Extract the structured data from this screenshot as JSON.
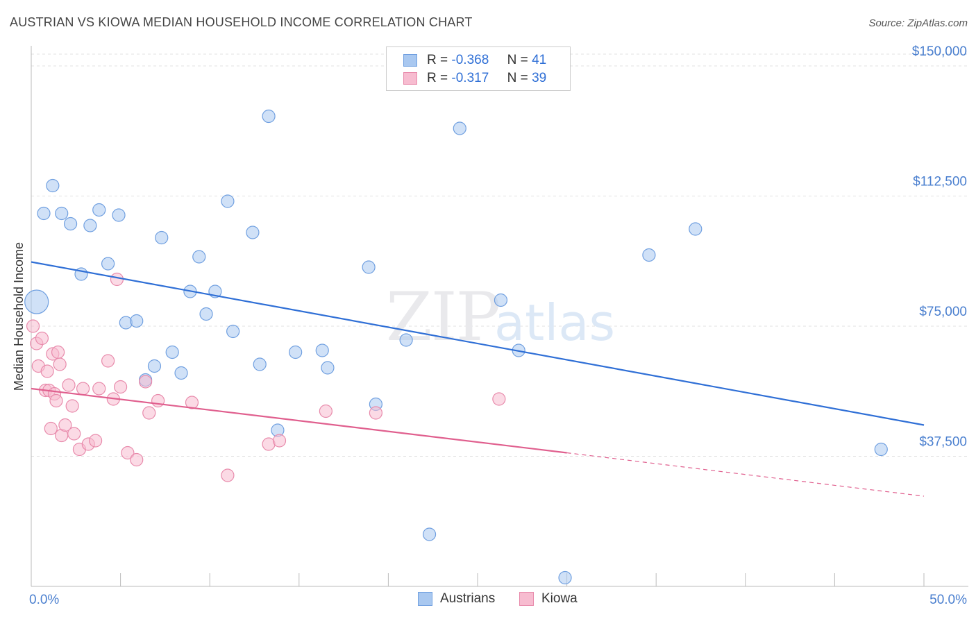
{
  "title": "AUSTRIAN VS KIOWA MEDIAN HOUSEHOLD INCOME CORRELATION CHART",
  "source": "Source: ZipAtlas.com",
  "watermark": {
    "zip": "ZIP",
    "atlas": "atlas"
  },
  "legend": {
    "rows": [
      {
        "r_label": "R =",
        "r_value": "-0.368",
        "n_label": "N =",
        "n_value": "41",
        "color": "#a9c8f0",
        "border": "#6f9fe0"
      },
      {
        "r_label": "R =",
        "r_value": "-0.317",
        "n_label": "N =",
        "n_value": "39",
        "color": "#f7bcd0",
        "border": "#e88aab"
      }
    ]
  },
  "bottom_legend": [
    {
      "label": "Austrians",
      "color": "#a9c8f0",
      "border": "#6f9fe0"
    },
    {
      "label": "Kiowa",
      "color": "#f7bcd0",
      "border": "#e88aab"
    }
  ],
  "chart_data": {
    "type": "scatter",
    "title": "AUSTRIAN VS KIOWA MEDIAN HOUSEHOLD INCOME CORRELATION CHART",
    "xlabel": "",
    "ylabel": "Median Household Income",
    "xlim": [
      0,
      50
    ],
    "ylim": [
      0,
      155000
    ],
    "x_tick_labels": [
      "0.0%",
      "50.0%"
    ],
    "y_ticks": [
      37500,
      75000,
      112500,
      150000
    ],
    "y_tick_labels": [
      "$37,500",
      "$75,000",
      "$112,500",
      "$150,000"
    ],
    "grid": "horizontal dashed",
    "legend_position": "top-center",
    "series": [
      {
        "name": "Austrians",
        "color": "#a9c8f0",
        "stroke": "#6f9fe0",
        "line_color": "#2f6fd6",
        "trend": {
          "x": [
            0,
            50
          ],
          "y": [
            93500,
            46500
          ]
        },
        "points": [
          {
            "x": 0.3,
            "y": 82000,
            "big": true
          },
          {
            "x": 0.7,
            "y": 107500
          },
          {
            "x": 1.2,
            "y": 115500
          },
          {
            "x": 1.7,
            "y": 107500
          },
          {
            "x": 2.2,
            "y": 104500
          },
          {
            "x": 2.8,
            "y": 90000
          },
          {
            "x": 3.3,
            "y": 104000
          },
          {
            "x": 3.8,
            "y": 108500
          },
          {
            "x": 4.3,
            "y": 93000
          },
          {
            "x": 4.9,
            "y": 107000
          },
          {
            "x": 5.3,
            "y": 76000
          },
          {
            "x": 5.9,
            "y": 76500
          },
          {
            "x": 6.4,
            "y": 59500
          },
          {
            "x": 6.9,
            "y": 63500
          },
          {
            "x": 7.3,
            "y": 100500
          },
          {
            "x": 7.9,
            "y": 67500
          },
          {
            "x": 8.4,
            "y": 61500
          },
          {
            "x": 8.9,
            "y": 85000
          },
          {
            "x": 9.4,
            "y": 95000
          },
          {
            "x": 9.8,
            "y": 78500
          },
          {
            "x": 10.3,
            "y": 85000
          },
          {
            "x": 11.0,
            "y": 111000
          },
          {
            "x": 11.3,
            "y": 73500
          },
          {
            "x": 12.4,
            "y": 102000
          },
          {
            "x": 12.8,
            "y": 64000
          },
          {
            "x": 13.3,
            "y": 135500
          },
          {
            "x": 13.8,
            "y": 45000
          },
          {
            "x": 14.8,
            "y": 67500
          },
          {
            "x": 16.3,
            "y": 68000
          },
          {
            "x": 16.6,
            "y": 63000
          },
          {
            "x": 18.9,
            "y": 92000
          },
          {
            "x": 19.3,
            "y": 52500
          },
          {
            "x": 21.0,
            "y": 71000
          },
          {
            "x": 22.3,
            "y": 15000
          },
          {
            "x": 24.0,
            "y": 132000
          },
          {
            "x": 26.3,
            "y": 82500
          },
          {
            "x": 27.3,
            "y": 68000
          },
          {
            "x": 29.9,
            "y": 2500
          },
          {
            "x": 34.6,
            "y": 95500
          },
          {
            "x": 37.2,
            "y": 103000
          },
          {
            "x": 47.6,
            "y": 39500
          }
        ]
      },
      {
        "name": "Kiowa",
        "color": "#f7bcd0",
        "stroke": "#e88aab",
        "line_color": "#e05f8e",
        "trend": {
          "x": [
            0,
            30
          ],
          "y": [
            57000,
            38500
          ]
        },
        "trend_dashed": {
          "x": [
            30,
            50
          ],
          "y": [
            38500,
            26000
          ]
        },
        "points": [
          {
            "x": 0.1,
            "y": 75000
          },
          {
            "x": 0.3,
            "y": 70000
          },
          {
            "x": 0.4,
            "y": 63500
          },
          {
            "x": 0.6,
            "y": 71500
          },
          {
            "x": 0.8,
            "y": 56500
          },
          {
            "x": 0.9,
            "y": 62000
          },
          {
            "x": 1.0,
            "y": 56500
          },
          {
            "x": 1.1,
            "y": 45500
          },
          {
            "x": 1.2,
            "y": 67000
          },
          {
            "x": 1.3,
            "y": 55500
          },
          {
            "x": 1.4,
            "y": 53500
          },
          {
            "x": 1.5,
            "y": 67500
          },
          {
            "x": 1.6,
            "y": 64000
          },
          {
            "x": 1.7,
            "y": 43500
          },
          {
            "x": 1.9,
            "y": 46500
          },
          {
            "x": 2.1,
            "y": 58000
          },
          {
            "x": 2.3,
            "y": 52000
          },
          {
            "x": 2.4,
            "y": 44000
          },
          {
            "x": 2.7,
            "y": 39500
          },
          {
            "x": 2.9,
            "y": 57000
          },
          {
            "x": 3.2,
            "y": 41000
          },
          {
            "x": 3.6,
            "y": 42000
          },
          {
            "x": 3.8,
            "y": 57000
          },
          {
            "x": 4.3,
            "y": 65000
          },
          {
            "x": 4.6,
            "y": 54000
          },
          {
            "x": 4.8,
            "y": 88500
          },
          {
            "x": 5.0,
            "y": 57500
          },
          {
            "x": 5.4,
            "y": 38500
          },
          {
            "x": 5.9,
            "y": 36500
          },
          {
            "x": 6.4,
            "y": 59000
          },
          {
            "x": 6.6,
            "y": 50000
          },
          {
            "x": 7.1,
            "y": 53500
          },
          {
            "x": 9.0,
            "y": 53000
          },
          {
            "x": 11.0,
            "y": 32000
          },
          {
            "x": 13.3,
            "y": 41000
          },
          {
            "x": 13.9,
            "y": 42000
          },
          {
            "x": 16.5,
            "y": 50500
          },
          {
            "x": 19.3,
            "y": 50000
          },
          {
            "x": 26.2,
            "y": 54000
          }
        ]
      }
    ]
  }
}
